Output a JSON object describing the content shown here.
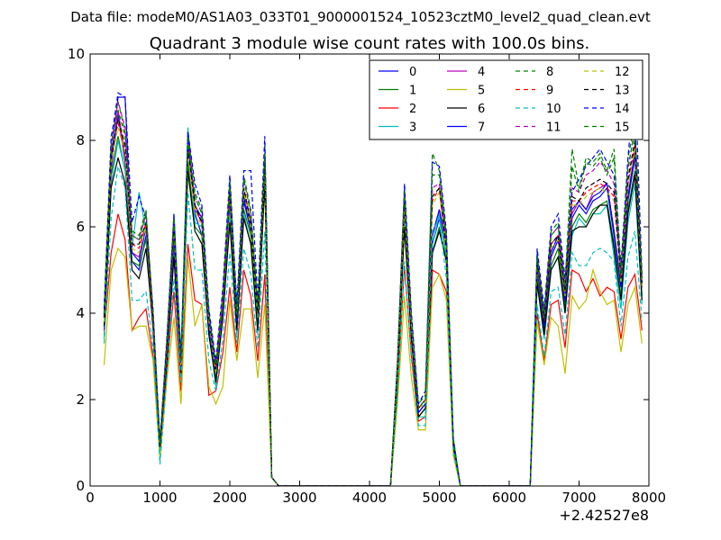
{
  "chart_data": {
    "type": "line",
    "suptitle": "Data file: modeM0/AS1A03_033T01_9000001524_10523cztM0_level2_quad_clean.evt",
    "title": "Quadrant 3 module wise count rates with 100.0s bins.",
    "xlabel": "",
    "ylabel": "",
    "x_offset_label": "+2.42527e8",
    "xlim": [
      0,
      8000
    ],
    "ylim": [
      0,
      10
    ],
    "xticks": [
      0,
      1000,
      2000,
      3000,
      4000,
      5000,
      6000,
      7000,
      8000
    ],
    "yticks": [
      0,
      2,
      4,
      6,
      8,
      10
    ],
    "x": [
      200,
      300,
      400,
      500,
      600,
      700,
      800,
      900,
      1000,
      1100,
      1200,
      1300,
      1400,
      1500,
      1600,
      1700,
      1800,
      1900,
      2000,
      2100,
      2200,
      2300,
      2400,
      2500,
      2600,
      2700,
      2800,
      4300,
      4400,
      4500,
      4600,
      4700,
      4800,
      4900,
      5000,
      5100,
      5200,
      5300,
      6300,
      6400,
      6500,
      6600,
      6700,
      6800,
      6900,
      7000,
      7100,
      7200,
      7300,
      7400,
      7500,
      7600,
      7700,
      7800,
      7900
    ],
    "legend_location": "upper right",
    "legend_columns": 4,
    "series": [
      {
        "name": "0",
        "color": "#0000ff",
        "style": "solid",
        "values": [
          3.8,
          7.4,
          8.6,
          7.5,
          5.2,
          5.0,
          5.8,
          3.6,
          0.9,
          3.0,
          5.6,
          2.7,
          7.9,
          6.3,
          5.8,
          3.6,
          2.5,
          4.0,
          6.5,
          3.7,
          6.6,
          5.9,
          3.8,
          7.5,
          0.2,
          0.0,
          0.0,
          0.0,
          2.6,
          6.4,
          3.6,
          1.7,
          1.9,
          5.6,
          6.2,
          5.4,
          1.0,
          0.0,
          0.0,
          5.0,
          3.6,
          5.3,
          5.7,
          4.2,
          6.2,
          6.5,
          6.3,
          6.6,
          6.7,
          6.9,
          5.8,
          4.6,
          6.6,
          7.6,
          4.6
        ]
      },
      {
        "name": "1",
        "color": "#008000",
        "style": "solid",
        "values": [
          3.7,
          7.2,
          8.1,
          7.3,
          5.2,
          5.1,
          5.7,
          3.8,
          0.9,
          3.0,
          5.4,
          2.6,
          7.5,
          6.0,
          5.8,
          3.5,
          2.5,
          3.9,
          6.3,
          3.6,
          6.4,
          5.8,
          3.7,
          7.2,
          0.2,
          0.0,
          0.0,
          0.0,
          2.5,
          6.1,
          3.5,
          1.6,
          1.8,
          5.4,
          6.0,
          5.2,
          0.9,
          0.0,
          0.0,
          4.8,
          3.5,
          5.1,
          5.5,
          4.1,
          6.0,
          6.3,
          6.1,
          6.4,
          6.5,
          6.6,
          5.6,
          4.4,
          6.4,
          7.3,
          4.4
        ]
      },
      {
        "name": "2",
        "color": "#ff0000",
        "style": "solid",
        "values": [
          3.5,
          5.4,
          6.3,
          5.7,
          3.6,
          3.9,
          4.1,
          3.0,
          0.9,
          2.7,
          4.5,
          2.2,
          5.6,
          4.3,
          4.2,
          2.1,
          2.2,
          3.1,
          4.6,
          3.1,
          5.0,
          4.4,
          2.9,
          4.9,
          0.2,
          0.0,
          0.0,
          0.0,
          2.2,
          5.1,
          3.0,
          1.5,
          1.6,
          5.0,
          4.9,
          4.5,
          0.9,
          0.0,
          0.0,
          4.0,
          2.9,
          4.2,
          4.3,
          3.2,
          5.0,
          4.9,
          4.5,
          4.8,
          4.4,
          4.6,
          4.5,
          3.4,
          4.6,
          4.9,
          3.6
        ]
      },
      {
        "name": "3",
        "color": "#00bfbf",
        "style": "solid",
        "values": [
          3.4,
          7.0,
          8.0,
          7.3,
          5.5,
          6.8,
          5.9,
          3.7,
          0.8,
          3.1,
          5.5,
          2.6,
          8.3,
          6.1,
          6.0,
          3.7,
          2.3,
          4.1,
          6.3,
          3.5,
          6.3,
          5.6,
          3.5,
          7.3,
          0.2,
          0.0,
          0.0,
          0.0,
          2.4,
          6.1,
          3.4,
          1.6,
          1.6,
          5.6,
          6.3,
          5.3,
          0.9,
          0.0,
          0.0,
          4.7,
          3.4,
          5.0,
          5.3,
          4.0,
          5.8,
          6.2,
          6.0,
          6.3,
          6.3,
          6.5,
          5.3,
          4.1,
          6.1,
          7.0,
          4.2
        ]
      },
      {
        "name": "4",
        "color": "#bf00bf",
        "style": "solid",
        "values": [
          3.6,
          7.3,
          8.7,
          7.6,
          5.4,
          5.3,
          6.0,
          3.9,
          0.9,
          3.2,
          5.7,
          2.8,
          8.0,
          6.4,
          6.1,
          3.8,
          2.7,
          4.2,
          6.7,
          3.8,
          6.8,
          6.1,
          3.9,
          7.6,
          0.2,
          0.0,
          0.0,
          0.0,
          2.7,
          6.5,
          3.7,
          1.8,
          2.0,
          5.8,
          6.4,
          5.6,
          1.0,
          0.0,
          0.0,
          5.1,
          3.7,
          5.4,
          5.8,
          4.3,
          6.3,
          6.6,
          6.4,
          6.8,
          6.9,
          7.0,
          5.9,
          4.7,
          6.7,
          7.8,
          4.7
        ]
      },
      {
        "name": "5",
        "color": "#bfbf00",
        "style": "solid",
        "values": [
          2.8,
          5.0,
          5.5,
          5.3,
          3.6,
          3.7,
          3.7,
          2.9,
          0.6,
          2.5,
          3.9,
          1.9,
          5.3,
          3.7,
          4.2,
          2.3,
          1.9,
          2.3,
          4.3,
          2.9,
          4.1,
          4.1,
          2.5,
          4.2,
          0.2,
          0.0,
          0.0,
          0.0,
          1.9,
          4.4,
          2.5,
          1.3,
          1.3,
          4.6,
          4.9,
          4.3,
          0.7,
          0.0,
          0.0,
          3.8,
          2.8,
          3.9,
          3.7,
          2.6,
          4.4,
          4.1,
          4.3,
          5.0,
          4.5,
          4.2,
          4.3,
          3.1,
          4.2,
          4.6,
          3.3
        ]
      },
      {
        "name": "6",
        "color": "#000000",
        "style": "solid",
        "values": [
          3.7,
          6.9,
          7.6,
          7.0,
          5.0,
          4.8,
          5.5,
          3.7,
          0.9,
          2.9,
          5.3,
          2.6,
          7.3,
          5.9,
          5.6,
          3.5,
          2.4,
          3.9,
          6.1,
          3.6,
          6.2,
          5.6,
          3.6,
          7.0,
          0.2,
          0.0,
          0.0,
          0.0,
          2.5,
          6.0,
          3.4,
          1.6,
          1.8,
          5.4,
          5.9,
          5.2,
          0.9,
          0.0,
          0.0,
          4.7,
          3.5,
          5.0,
          5.3,
          4.0,
          5.9,
          6.0,
          6.0,
          6.3,
          6.5,
          6.5,
          5.5,
          4.3,
          6.3,
          7.2,
          4.3
        ]
      },
      {
        "name": "7",
        "color": "#0000ff",
        "style": "solid",
        "values": [
          3.9,
          7.6,
          9.0,
          9.0,
          5.4,
          5.2,
          6.0,
          3.8,
          0.9,
          3.1,
          5.7,
          2.7,
          8.1,
          6.5,
          6.2,
          3.7,
          2.6,
          4.1,
          6.8,
          3.8,
          6.7,
          6.0,
          3.9,
          7.7,
          0.2,
          0.0,
          0.0,
          0.0,
          2.7,
          6.6,
          3.7,
          1.7,
          1.9,
          5.8,
          6.4,
          5.5,
          1.0,
          0.0,
          0.0,
          5.1,
          3.7,
          5.4,
          5.8,
          4.3,
          6.4,
          6.6,
          6.4,
          6.7,
          6.8,
          7.0,
          5.9,
          4.6,
          6.7,
          7.7,
          4.6
        ]
      },
      {
        "name": "8",
        "color": "#008000",
        "style": "dashed",
        "values": [
          4.1,
          8.1,
          8.9,
          8.2,
          5.9,
          5.8,
          6.4,
          4.0,
          1.0,
          3.4,
          6.3,
          3.0,
          8.2,
          6.8,
          6.4,
          4.0,
          2.8,
          4.5,
          7.1,
          4.1,
          7.2,
          6.4,
          4.2,
          7.9,
          0.2,
          0.0,
          0.0,
          0.0,
          2.9,
          6.9,
          3.9,
          1.9,
          2.1,
          7.7,
          7.3,
          5.8,
          1.1,
          0.0,
          0.0,
          5.4,
          4.0,
          5.9,
          6.1,
          4.7,
          7.8,
          6.9,
          7.6,
          7.5,
          7.7,
          7.3,
          7.8,
          5.0,
          7.6,
          8.4,
          4.9
        ]
      },
      {
        "name": "9",
        "color": "#ff0000",
        "style": "dashed",
        "values": [
          3.9,
          7.7,
          8.4,
          7.8,
          5.6,
          5.5,
          6.1,
          3.8,
          0.9,
          3.2,
          6.0,
          2.8,
          7.8,
          6.5,
          6.1,
          3.8,
          2.7,
          4.3,
          6.8,
          3.9,
          6.9,
          6.1,
          4.0,
          7.5,
          0.2,
          0.0,
          0.0,
          0.0,
          2.7,
          6.6,
          3.7,
          1.8,
          2.0,
          6.6,
          6.9,
          5.5,
          1.0,
          0.0,
          0.0,
          5.2,
          3.8,
          5.6,
          5.8,
          4.5,
          6.6,
          6.6,
          6.8,
          6.9,
          7.0,
          6.9,
          6.7,
          4.8,
          7.0,
          7.9,
          4.6
        ]
      },
      {
        "name": "10",
        "color": "#00bfbf",
        "style": "dashed",
        "values": [
          3.3,
          6.2,
          7.4,
          6.9,
          4.3,
          4.3,
          4.5,
          3.2,
          0.5,
          2.6,
          4.8,
          2.4,
          6.8,
          5.0,
          5.0,
          2.9,
          2.2,
          3.4,
          5.4,
          3.3,
          5.5,
          4.9,
          3.2,
          5.9,
          0.2,
          0.0,
          0.0,
          0.0,
          2.1,
          5.2,
          2.9,
          1.4,
          1.4,
          5.9,
          6.2,
          4.8,
          0.8,
          0.0,
          0.0,
          4.2,
          3.0,
          4.5,
          4.6,
          3.5,
          5.4,
          5.1,
          5.1,
          5.4,
          5.5,
          5.4,
          5.2,
          3.7,
          5.3,
          5.9,
          3.8
        ]
      },
      {
        "name": "11",
        "color": "#bf00bf",
        "style": "dashed",
        "values": [
          4.0,
          7.9,
          8.9,
          8.3,
          5.8,
          5.7,
          6.3,
          4.0,
          1.0,
          3.4,
          6.1,
          2.9,
          8.0,
          6.7,
          6.3,
          3.9,
          2.8,
          4.4,
          7.0,
          4.0,
          7.1,
          6.3,
          4.1,
          7.8,
          0.2,
          0.0,
          0.0,
          0.0,
          2.8,
          6.8,
          3.8,
          1.8,
          2.0,
          6.9,
          7.0,
          5.7,
          1.0,
          0.0,
          0.0,
          5.3,
          3.9,
          5.8,
          6.0,
          4.6,
          6.9,
          6.8,
          7.2,
          7.3,
          7.5,
          7.3,
          7.0,
          4.9,
          7.3,
          8.3,
          4.8
        ]
      },
      {
        "name": "12",
        "color": "#bfbf00",
        "style": "dashed",
        "values": [
          3.8,
          7.5,
          8.3,
          7.7,
          5.5,
          5.4,
          6.0,
          3.8,
          0.9,
          3.2,
          5.9,
          2.8,
          7.7,
          6.4,
          6.0,
          3.8,
          2.6,
          4.2,
          6.7,
          3.9,
          6.8,
          6.0,
          3.9,
          7.4,
          0.2,
          0.0,
          0.0,
          0.0,
          2.7,
          6.5,
          3.7,
          1.8,
          1.9,
          6.5,
          6.8,
          5.4,
          1.0,
          0.0,
          0.0,
          5.1,
          3.8,
          5.5,
          5.7,
          4.4,
          6.5,
          6.5,
          6.7,
          6.8,
          6.9,
          6.8,
          6.6,
          4.7,
          6.9,
          7.8,
          4.6
        ]
      },
      {
        "name": "13",
        "color": "#000000",
        "style": "dashed",
        "values": [
          3.9,
          7.6,
          8.5,
          7.9,
          5.6,
          5.6,
          6.1,
          3.9,
          0.9,
          3.3,
          6.0,
          2.9,
          7.8,
          6.5,
          6.1,
          3.9,
          2.7,
          4.3,
          6.8,
          3.9,
          6.9,
          6.1,
          4.0,
          7.5,
          0.2,
          0.0,
          0.0,
          0.0,
          2.8,
          6.6,
          3.8,
          1.8,
          2.0,
          6.7,
          6.9,
          5.5,
          1.0,
          0.0,
          0.0,
          5.2,
          3.8,
          5.6,
          5.8,
          4.5,
          6.7,
          6.6,
          6.9,
          7.0,
          7.1,
          7.0,
          6.8,
          4.8,
          7.1,
          8.0,
          4.7
        ]
      },
      {
        "name": "14",
        "color": "#0000ff",
        "style": "dashed",
        "values": [
          4.1,
          8.0,
          9.1,
          9.0,
          6.1,
          6.7,
          6.2,
          4.1,
          1.0,
          3.5,
          6.3,
          3.0,
          8.2,
          7.0,
          6.5,
          4.1,
          2.9,
          4.6,
          7.2,
          4.2,
          7.3,
          7.3,
          4.3,
          8.1,
          0.2,
          0.0,
          0.0,
          0.0,
          2.9,
          7.0,
          4.0,
          1.9,
          2.2,
          7.5,
          7.4,
          5.9,
          1.1,
          0.0,
          0.0,
          5.5,
          4.1,
          6.0,
          6.3,
          4.8,
          6.8,
          7.1,
          7.4,
          7.6,
          7.8,
          7.5,
          7.2,
          5.1,
          7.6,
          9.5,
          4.9
        ]
      },
      {
        "name": "15",
        "color": "#008000",
        "style": "dashed",
        "values": [
          4.0,
          7.8,
          8.7,
          8.1,
          5.8,
          5.7,
          6.3,
          4.0,
          1.0,
          3.4,
          6.2,
          2.9,
          8.0,
          6.7,
          6.3,
          4.0,
          2.8,
          4.4,
          7.0,
          4.0,
          7.1,
          6.3,
          4.1,
          7.7,
          0.2,
          0.0,
          0.0,
          0.0,
          2.8,
          6.8,
          3.8,
          1.8,
          2.0,
          7.2,
          7.2,
          5.7,
          1.0,
          0.0,
          0.0,
          5.3,
          3.9,
          5.8,
          6.0,
          4.6,
          7.4,
          6.8,
          7.5,
          7.4,
          7.6,
          7.2,
          7.6,
          4.9,
          7.4,
          8.2,
          4.8
        ]
      }
    ]
  }
}
